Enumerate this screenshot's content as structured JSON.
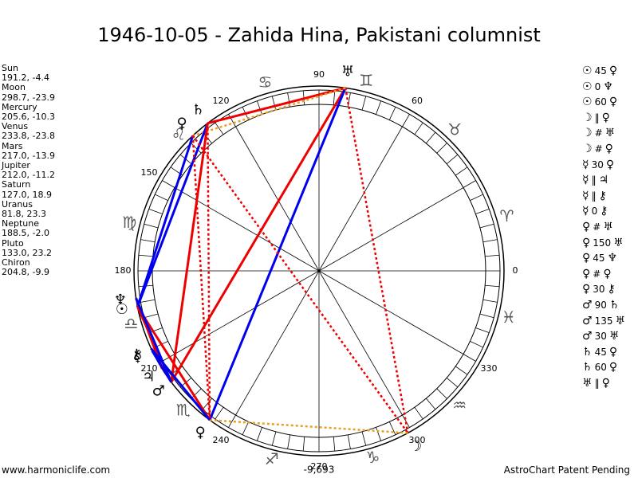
{
  "header": {
    "title": "1946-10-05 - Zahida Hina, Pakistani columnist"
  },
  "planets": [
    {
      "name": "Sun",
      "position": "191.2, -4.4",
      "longitude": 191.2,
      "glyph": "☉"
    },
    {
      "name": "Moon",
      "position": "298.7, -23.9",
      "longitude": 298.7,
      "glyph": "☽"
    },
    {
      "name": "Mercury",
      "position": "205.6, -10.3",
      "longitude": 205.6,
      "glyph": "☿"
    },
    {
      "name": "Venus",
      "position": "233.8, -23.8",
      "longitude": 233.8,
      "glyph": "♀"
    },
    {
      "name": "Mars",
      "position": "217.0, -13.9",
      "longitude": 217.0,
      "glyph": "♂"
    },
    {
      "name": "Jupiter",
      "position": "212.0, -11.2",
      "longitude": 212.0,
      "glyph": "♃"
    },
    {
      "name": "Saturn",
      "position": "127.0, 18.9",
      "longitude": 127.0,
      "glyph": "♄"
    },
    {
      "name": "Uranus",
      "position": "81.8, 23.3",
      "longitude": 81.8,
      "glyph": "♅"
    },
    {
      "name": "Neptune",
      "position": "188.5, -2.0",
      "longitude": 188.5,
      "glyph": "♆"
    },
    {
      "name": "Pluto",
      "position": "133.0, 23.2",
      "longitude": 133.0,
      "glyph": "♀"
    },
    {
      "name": "Chiron",
      "position": "204.8, -9.9",
      "longitude": 204.8,
      "glyph": "⚷"
    }
  ],
  "aspects": [
    [
      "☉",
      "45",
      "♀"
    ],
    [
      "☉",
      "0",
      "♆"
    ],
    [
      "☉",
      "60",
      "♀"
    ],
    [
      "☽",
      "‖",
      "♀"
    ],
    [
      "☽",
      "#",
      "♅"
    ],
    [
      "☽",
      "#",
      "♀"
    ],
    [
      "☿",
      "30",
      "♀"
    ],
    [
      "☿",
      "‖",
      "♃"
    ],
    [
      "☿",
      "‖",
      "⚷"
    ],
    [
      "☿",
      "0",
      "⚷"
    ],
    [
      "♀",
      "#",
      "♅"
    ],
    [
      "♀",
      "150",
      "♅"
    ],
    [
      "♀",
      "45",
      "♆"
    ],
    [
      "♀",
      "#",
      "♀"
    ],
    [
      "♀",
      "30",
      "⚷"
    ],
    [
      "♂",
      "90",
      "♄"
    ],
    [
      "♂",
      "135",
      "♅"
    ],
    [
      "♂",
      "30",
      "♅"
    ],
    [
      "♄",
      "45",
      "♀"
    ],
    [
      "♄",
      "60",
      "♀"
    ],
    [
      "♅",
      "‖",
      "♀"
    ]
  ],
  "wheel": {
    "degree_labels": [
      0,
      60,
      90,
      120,
      150,
      180,
      210,
      240,
      270,
      300,
      330
    ],
    "signs": [
      "♈",
      "♉",
      "♊",
      "♋",
      "♌",
      "♍",
      "♎",
      "♏",
      "♐",
      "♑",
      "♒",
      "♓"
    ],
    "sum_label": "-9,693"
  },
  "footer": {
    "left": "www.harmoniclife.com",
    "right": "AstroChart Patent Pending"
  }
}
